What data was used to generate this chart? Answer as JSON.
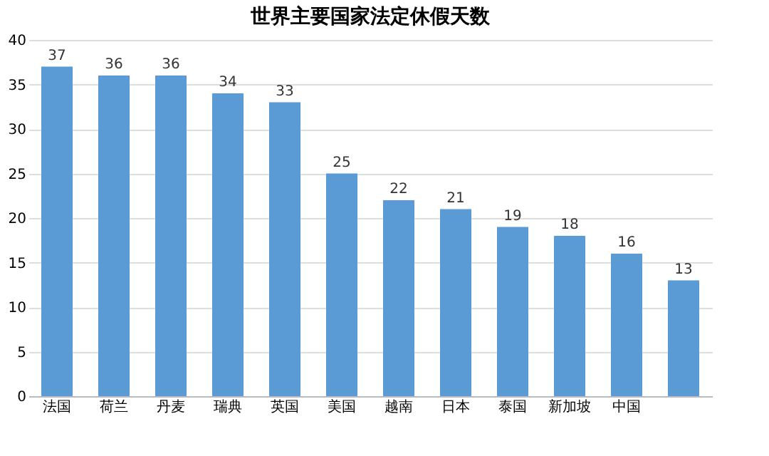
{
  "chart_data": {
    "type": "bar",
    "title": "世界主要国家法定休假天数",
    "categories": [
      "法国",
      "荷兰",
      "丹麦",
      "瑞典",
      "英国",
      "美国",
      "越南",
      "日本",
      "泰国",
      "新加坡",
      "中国",
      null
    ],
    "values": [
      37,
      36,
      36,
      34,
      33,
      25,
      22,
      21,
      19,
      18,
      16,
      13
    ],
    "color": "#5b9bd5",
    "ylim": [
      0,
      40
    ],
    "yticks": [
      0,
      5,
      10,
      15,
      20,
      25,
      30,
      35,
      40
    ],
    "grid": "y",
    "data_labels": true
  }
}
